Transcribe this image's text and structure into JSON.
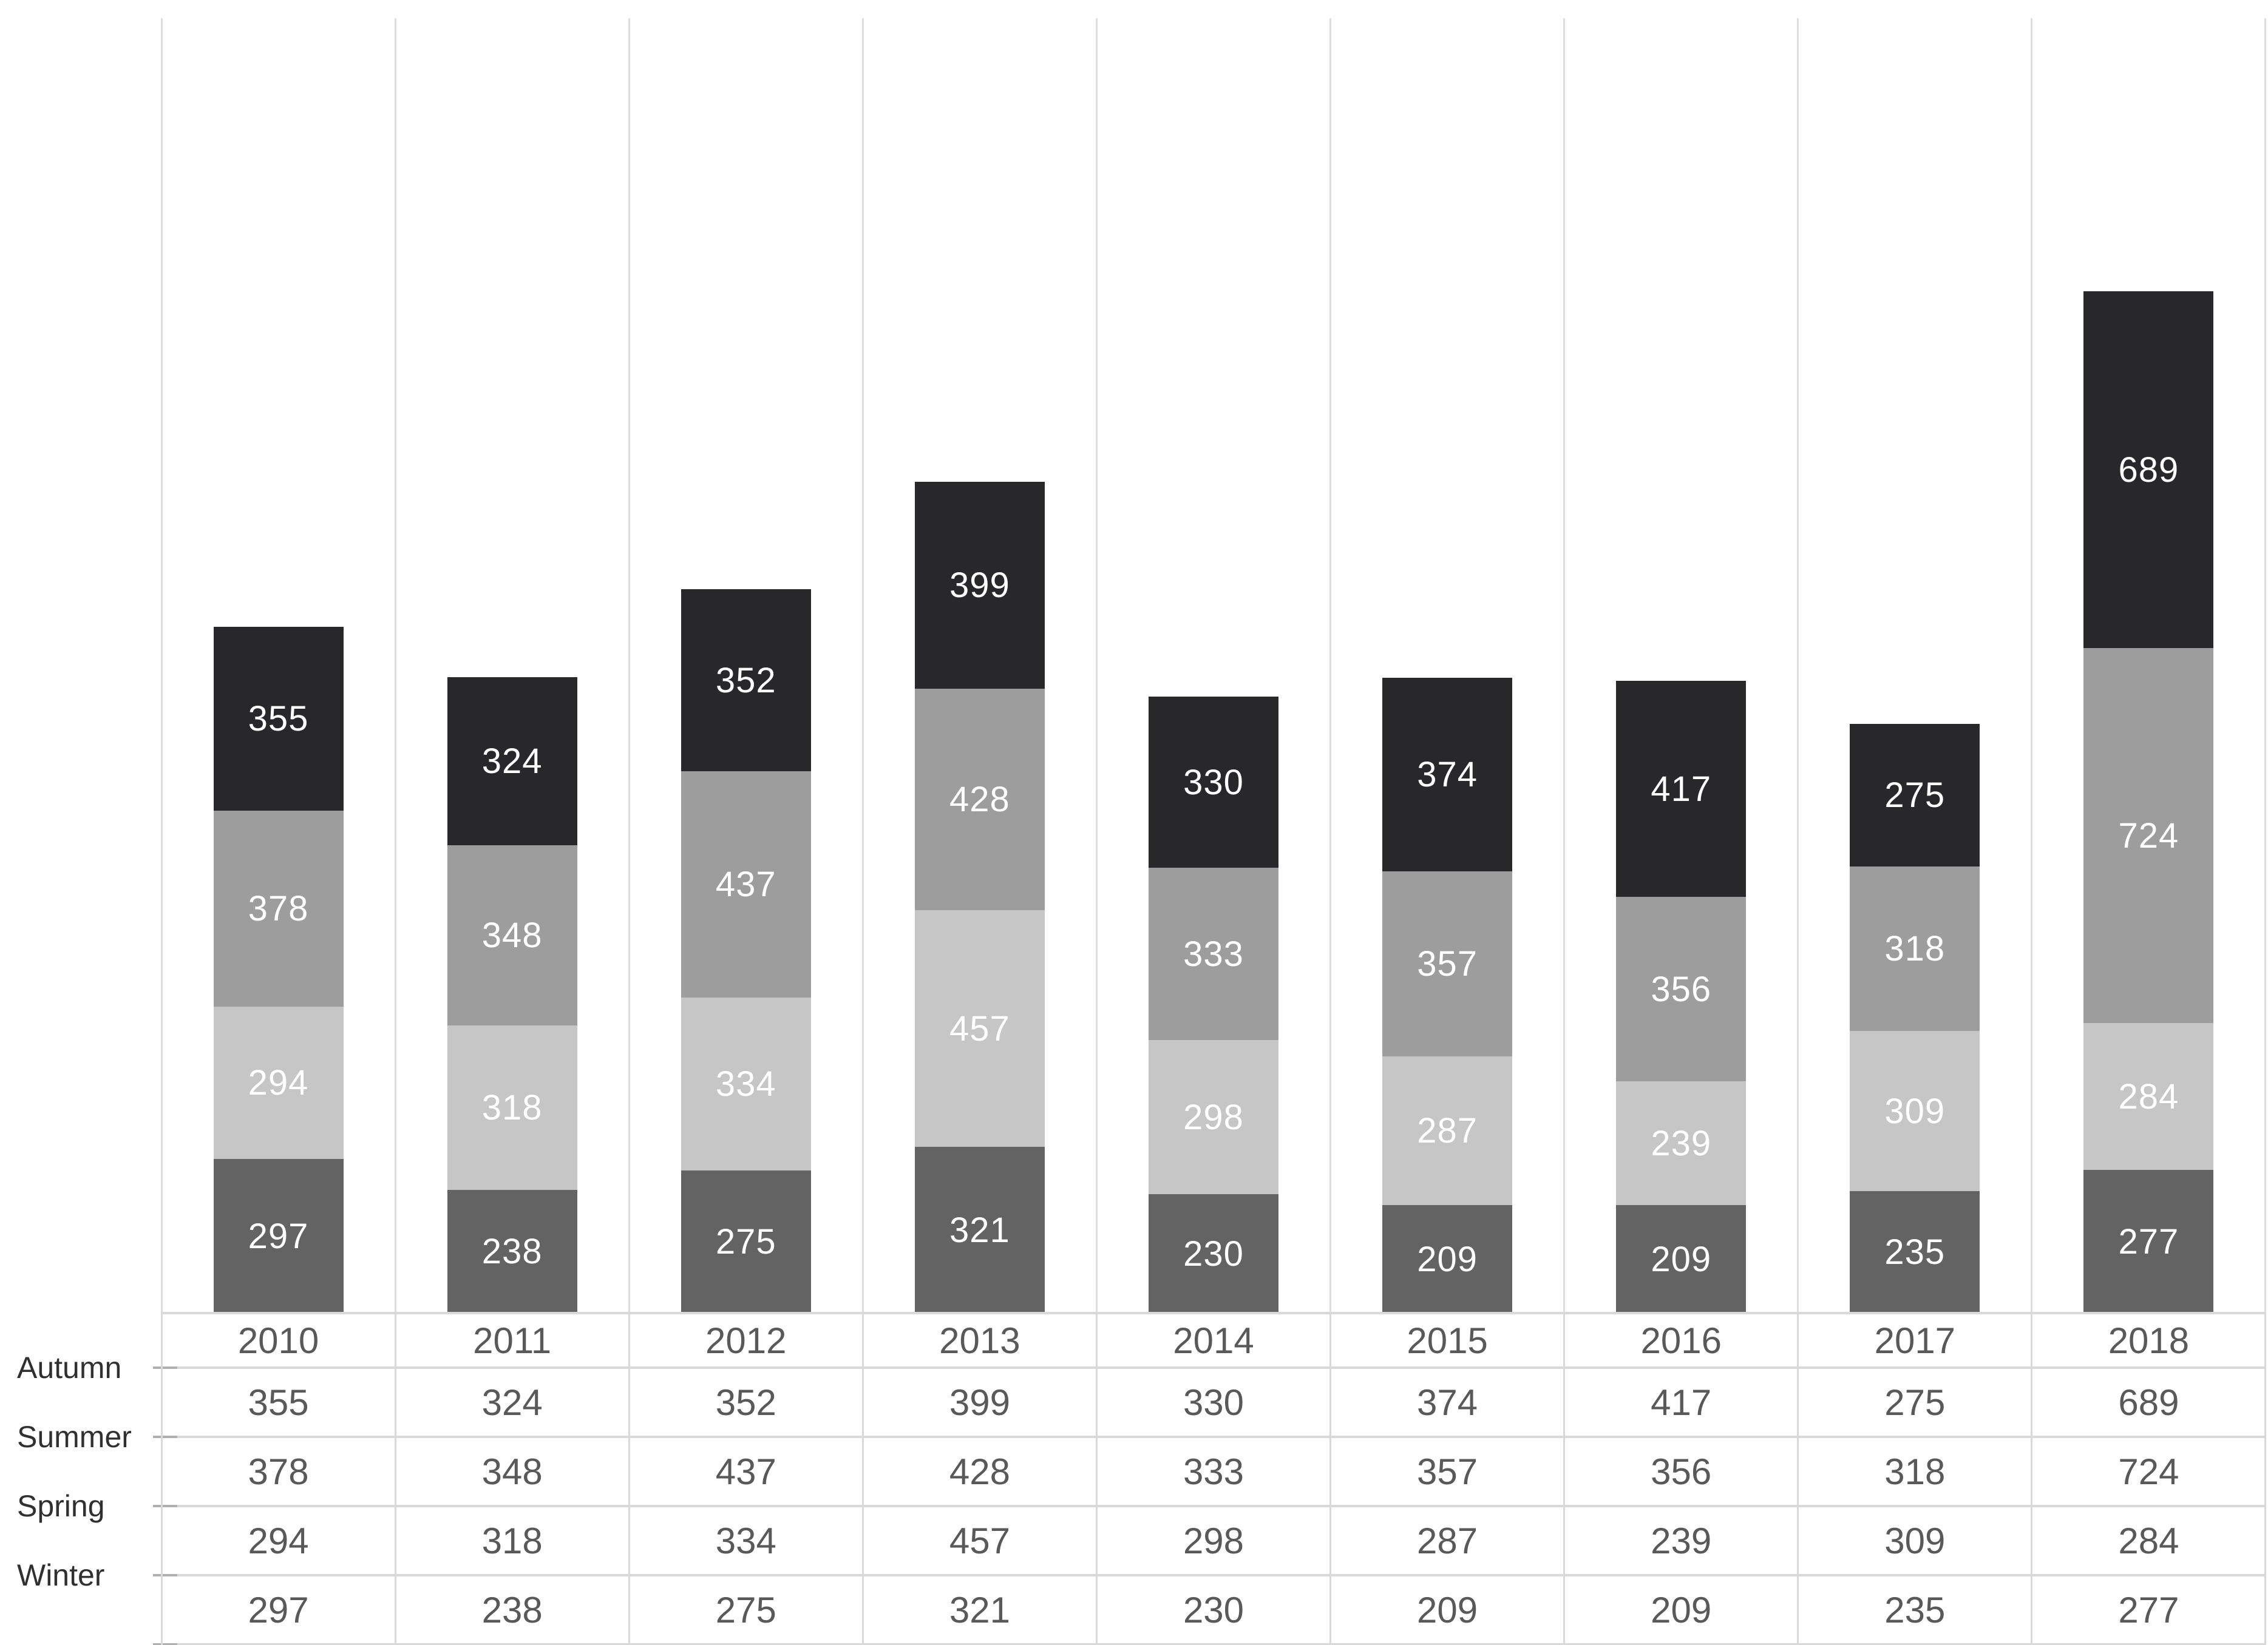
{
  "chart_data": {
    "type": "bar",
    "variant": "stacked-column-grayscale",
    "title": "",
    "categories": [
      "2010",
      "2011",
      "2012",
      "2013",
      "2014",
      "2015",
      "2016",
      "2017",
      "2018"
    ],
    "series": [
      {
        "name": "Autumn",
        "color": "#28282a",
        "values": [
          355,
          324,
          352,
          399,
          330,
          374,
          417,
          275,
          689
        ]
      },
      {
        "name": "Summer",
        "color": "#9d9d9d",
        "values": [
          378,
          348,
          437,
          428,
          333,
          357,
          356,
          318,
          724
        ]
      },
      {
        "name": "Spring",
        "color": "#c6c6c6",
        "values": [
          294,
          318,
          334,
          457,
          298,
          287,
          239,
          309,
          284
        ]
      },
      {
        "name": "Winter",
        "color": "#636363",
        "values": [
          297,
          238,
          275,
          321,
          230,
          209,
          209,
          235,
          277
        ]
      }
    ],
    "stack_order_bottom_to_top": [
      "Winter",
      "Spring",
      "Summer",
      "Autumn"
    ],
    "value_labels": "each segment labeled with its value in white, centered",
    "xlabel": "",
    "ylabel": "",
    "ylim": [
      0,
      2500
    ],
    "grid": "vertical category-boundary gridlines only",
    "legend_position": "row labels of attached data table (left side)",
    "data_table_shown": true
  },
  "table": {
    "column_headers": [
      "2010",
      "2011",
      "2012",
      "2013",
      "2014",
      "2015",
      "2016",
      "2017",
      "2018"
    ],
    "rows": [
      {
        "label": "Autumn",
        "values": [
          "355",
          "324",
          "352",
          "399",
          "330",
          "374",
          "417",
          "275",
          "689"
        ]
      },
      {
        "label": "Summer",
        "values": [
          "378",
          "348",
          "437",
          "428",
          "333",
          "357",
          "356",
          "318",
          "724"
        ]
      },
      {
        "label": "Spring",
        "values": [
          "294",
          "318",
          "334",
          "457",
          "298",
          "287",
          "239",
          "309",
          "284"
        ]
      },
      {
        "label": "Winter",
        "values": [
          "297",
          "238",
          "275",
          "321",
          "230",
          "209",
          "209",
          "235",
          "277"
        ]
      }
    ]
  },
  "colors": {
    "background": "#ffffff",
    "plot_gridline": "#dedede",
    "table_border": "#d9d9d9",
    "axis_tick": "#b0b0b0",
    "header_text": "#595959",
    "cell_text": "#595959",
    "row_label_text": "#303030",
    "bar_label_text": "#ffffff"
  }
}
